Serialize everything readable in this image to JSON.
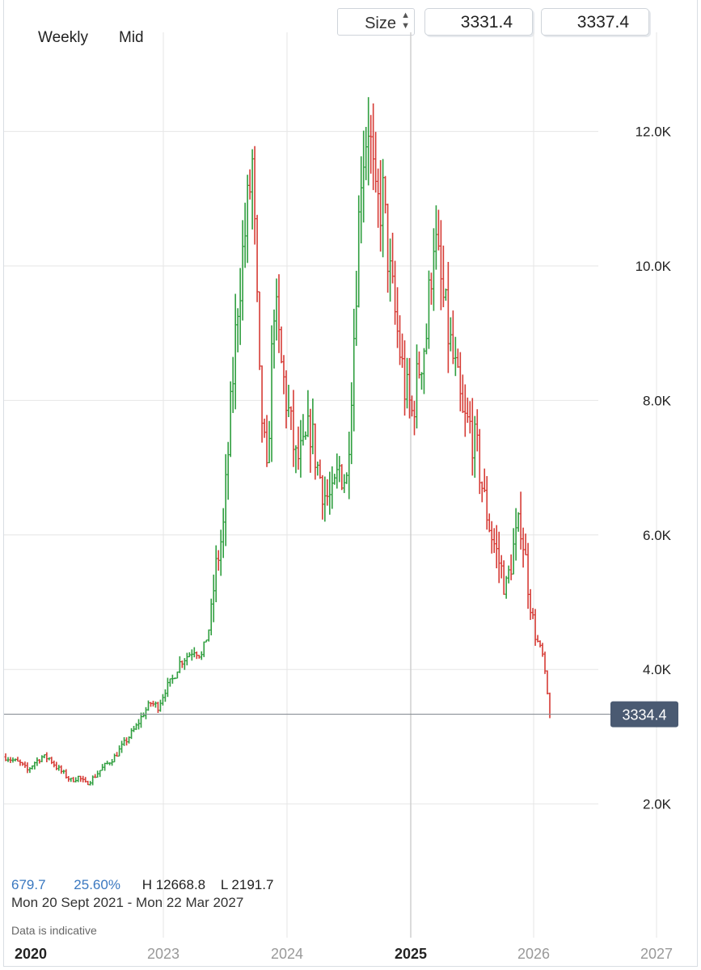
{
  "header": {
    "interval": "Weekly",
    "price_type": "Mid",
    "size_label": "Size",
    "bid": "3331.4",
    "ask": "3337.4"
  },
  "stats": {
    "change": "679.7",
    "change_pct": "25.60%",
    "high": "H 12668.8",
    "low": "L 2191.7",
    "range": "Mon 20 Sept 2021 - Mon 22 Mar 2027",
    "note": "Data is indicative"
  },
  "current_price_label": "3334.4",
  "colors": {
    "up": "#2e9e3e",
    "down": "#d63b35",
    "grid": "#e6e6e6",
    "price_tag": "#4a5a72"
  },
  "chart_data": {
    "type": "ohlc",
    "y_ticks": [
      {
        "value": 2000,
        "label": "2.0K"
      },
      {
        "value": 4000,
        "label": "4.0K"
      },
      {
        "value": 6000,
        "label": "6.0K"
      },
      {
        "value": 8000,
        "label": "8.0K"
      },
      {
        "value": 10000,
        "label": "10.0K"
      },
      {
        "value": 12000,
        "label": "12.0K"
      }
    ],
    "x_ticks": [
      {
        "label": "2020",
        "bold": true
      },
      {
        "label": "2023",
        "bold": false
      },
      {
        "label": "2024",
        "bold": false
      },
      {
        "label": "2025",
        "bold": true
      },
      {
        "label": "2026",
        "bold": false
      },
      {
        "label": "2027",
        "bold": false
      }
    ],
    "current_price": 3334.4,
    "close_keypoints": [
      2700,
      2650,
      2600,
      2500,
      2620,
      2700,
      2680,
      2550,
      2450,
      2350,
      2400,
      2300,
      2380,
      2500,
      2600,
      2700,
      2850,
      3000,
      3150,
      3350,
      3500,
      3450,
      3700,
      3850,
      4100,
      4200,
      4300,
      4200,
      4600,
      5500,
      6100,
      7800,
      9500,
      10500,
      11500,
      8200,
      6800,
      9500,
      8500,
      7800,
      7100,
      7200,
      7600,
      7000,
      6600,
      6500,
      7000,
      6800,
      9000,
      11500,
      12200,
      10800,
      11000,
      9800,
      9000,
      8200,
      7800,
      8500,
      9000,
      10500,
      9700,
      9000,
      8400,
      7700,
      7600,
      7200,
      6500,
      6000,
      5600,
      5200,
      5800,
      6200,
      5300,
      4500,
      4200,
      3334
    ]
  }
}
